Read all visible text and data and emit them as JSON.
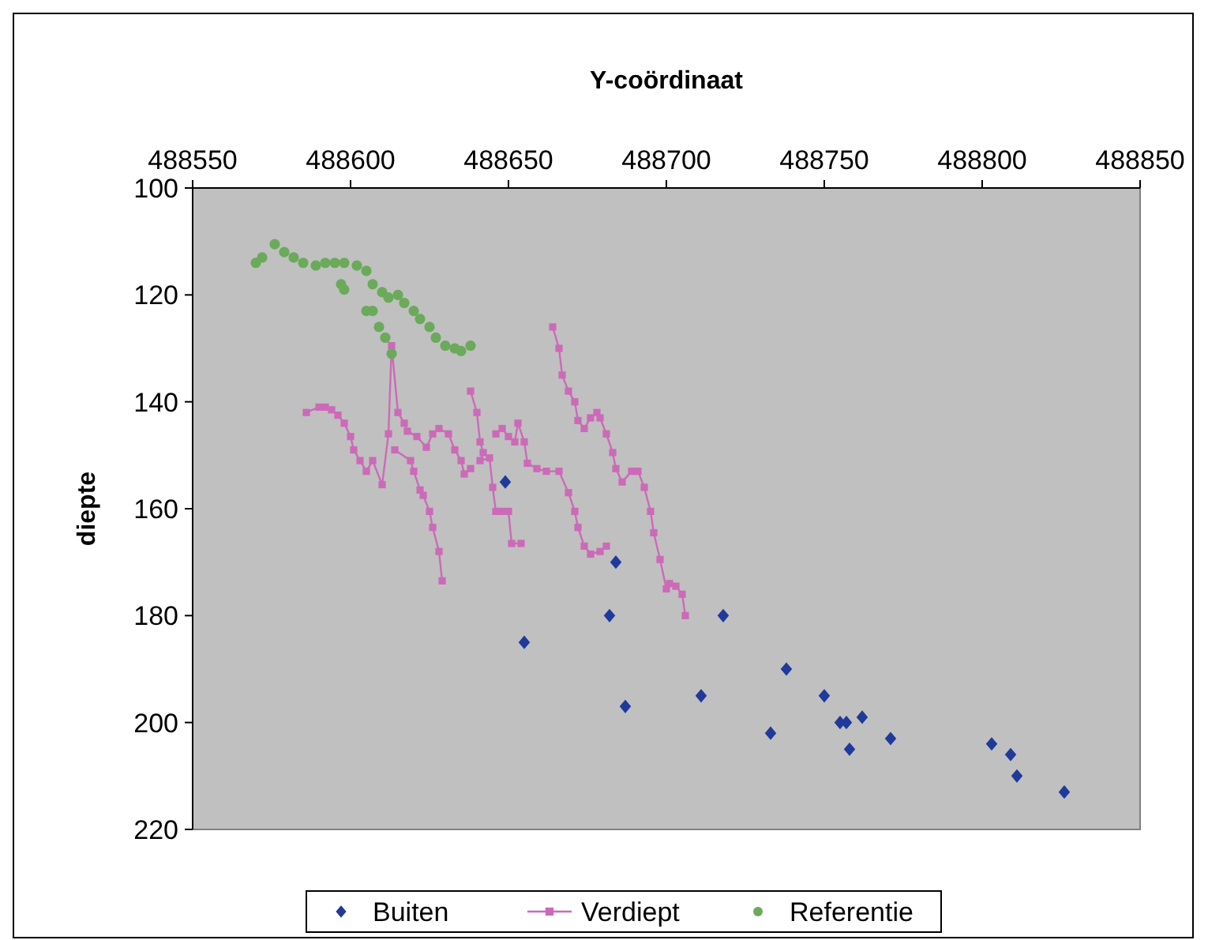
{
  "chart_data": {
    "type": "scatter",
    "xlabel": "Y-coördinaat",
    "ylabel": "diepte",
    "xlim": [
      488550,
      488850
    ],
    "xticks": [
      488550,
      488600,
      488650,
      488700,
      488750,
      488800,
      488850
    ],
    "ylim": [
      220,
      100
    ],
    "yticks": [
      100,
      120,
      140,
      160,
      180,
      200,
      220
    ],
    "grid": false,
    "legend": "bottom",
    "series": [
      {
        "name": "Buiten",
        "marker": "diamond",
        "color": "#1f3a9a",
        "x": [
          488649,
          488684,
          488682,
          488718,
          488655,
          488738,
          488687,
          488711,
          488750,
          488733,
          488755,
          488757,
          488762,
          488758,
          488771,
          488803,
          488809,
          488811,
          488826
        ],
        "values": [
          155,
          170,
          180,
          180,
          185,
          190,
          197,
          195,
          195,
          202,
          200,
          200,
          199,
          205,
          203,
          204,
          206,
          210,
          213
        ]
      },
      {
        "name": "Verdiept",
        "type": "line",
        "marker": "square",
        "color": "#cc6ab8",
        "x": [
          488586,
          488590,
          488592,
          488594,
          488596,
          488598,
          488600,
          488601,
          488603,
          488605,
          488607,
          488610,
          488612,
          488613,
          488615,
          488617,
          488618,
          488621,
          488624,
          488626,
          488628,
          488631,
          488633,
          488635,
          488636,
          488638,
          null,
          488614,
          488619,
          488620,
          488622,
          488623,
          488625,
          488626,
          488628,
          488629,
          null,
          488638,
          488640,
          488641,
          488642,
          488641,
          488644,
          488645,
          488646,
          488648,
          488650,
          488651,
          488654,
          null,
          488646,
          488648,
          488650,
          488652,
          488653,
          488655,
          488656,
          488659,
          488662,
          488666,
          488669,
          488671,
          488672,
          488674,
          488676,
          488679,
          488681,
          null,
          488664,
          488666,
          488667,
          488669,
          488671,
          488672,
          488674,
          488676,
          488678,
          488679,
          488681,
          488683,
          488684,
          488686,
          488689,
          488691,
          488693,
          488695,
          488696,
          488698,
          488700,
          488701,
          488703,
          488705,
          488706
        ],
        "values": [
          142,
          141,
          141,
          141.5,
          142.5,
          144,
          146.5,
          149,
          151,
          153,
          151,
          155.5,
          146,
          129.5,
          142,
          144,
          145.5,
          146.5,
          148.5,
          146,
          145,
          146,
          149,
          151,
          153.5,
          152.5,
          null,
          149,
          151,
          153,
          156.5,
          157.5,
          160.5,
          163.5,
          168,
          173.5,
          null,
          138,
          142,
          147.5,
          149.5,
          151,
          150.5,
          156,
          160.5,
          160.5,
          160.5,
          166.5,
          166.5,
          null,
          146,
          145,
          146.5,
          147.5,
          144,
          147.5,
          151.5,
          152.5,
          153,
          153,
          157,
          160.5,
          163.5,
          167,
          168.5,
          168,
          167,
          null,
          126,
          130,
          135,
          138,
          140,
          143.5,
          145,
          143,
          142,
          143,
          146,
          149.5,
          152.5,
          155,
          153,
          153,
          156,
          160.5,
          164.5,
          169.5,
          175,
          174,
          174.5,
          176,
          180
        ]
      },
      {
        "name": "Referentie",
        "marker": "circle",
        "color": "#6aaa5a",
        "x": [
          488570,
          488572,
          488576,
          488579,
          488582,
          488585,
          488589,
          488592,
          488595,
          488598,
          488602,
          488605,
          488607,
          488610,
          488612,
          488615,
          488617,
          488620,
          488622,
          488625,
          488627,
          488630,
          488633,
          488635,
          488638,
          488597,
          488598,
          488605,
          488607,
          488609,
          488611,
          488613
        ],
        "values": [
          114,
          113,
          110.5,
          112,
          113,
          114,
          114.5,
          114,
          114,
          114,
          114.5,
          115.5,
          118,
          119.5,
          120.5,
          120,
          121.5,
          123,
          124.5,
          126,
          128,
          129.5,
          130,
          130.5,
          129.5,
          118,
          119,
          123,
          123,
          126,
          128,
          131
        ]
      }
    ]
  }
}
